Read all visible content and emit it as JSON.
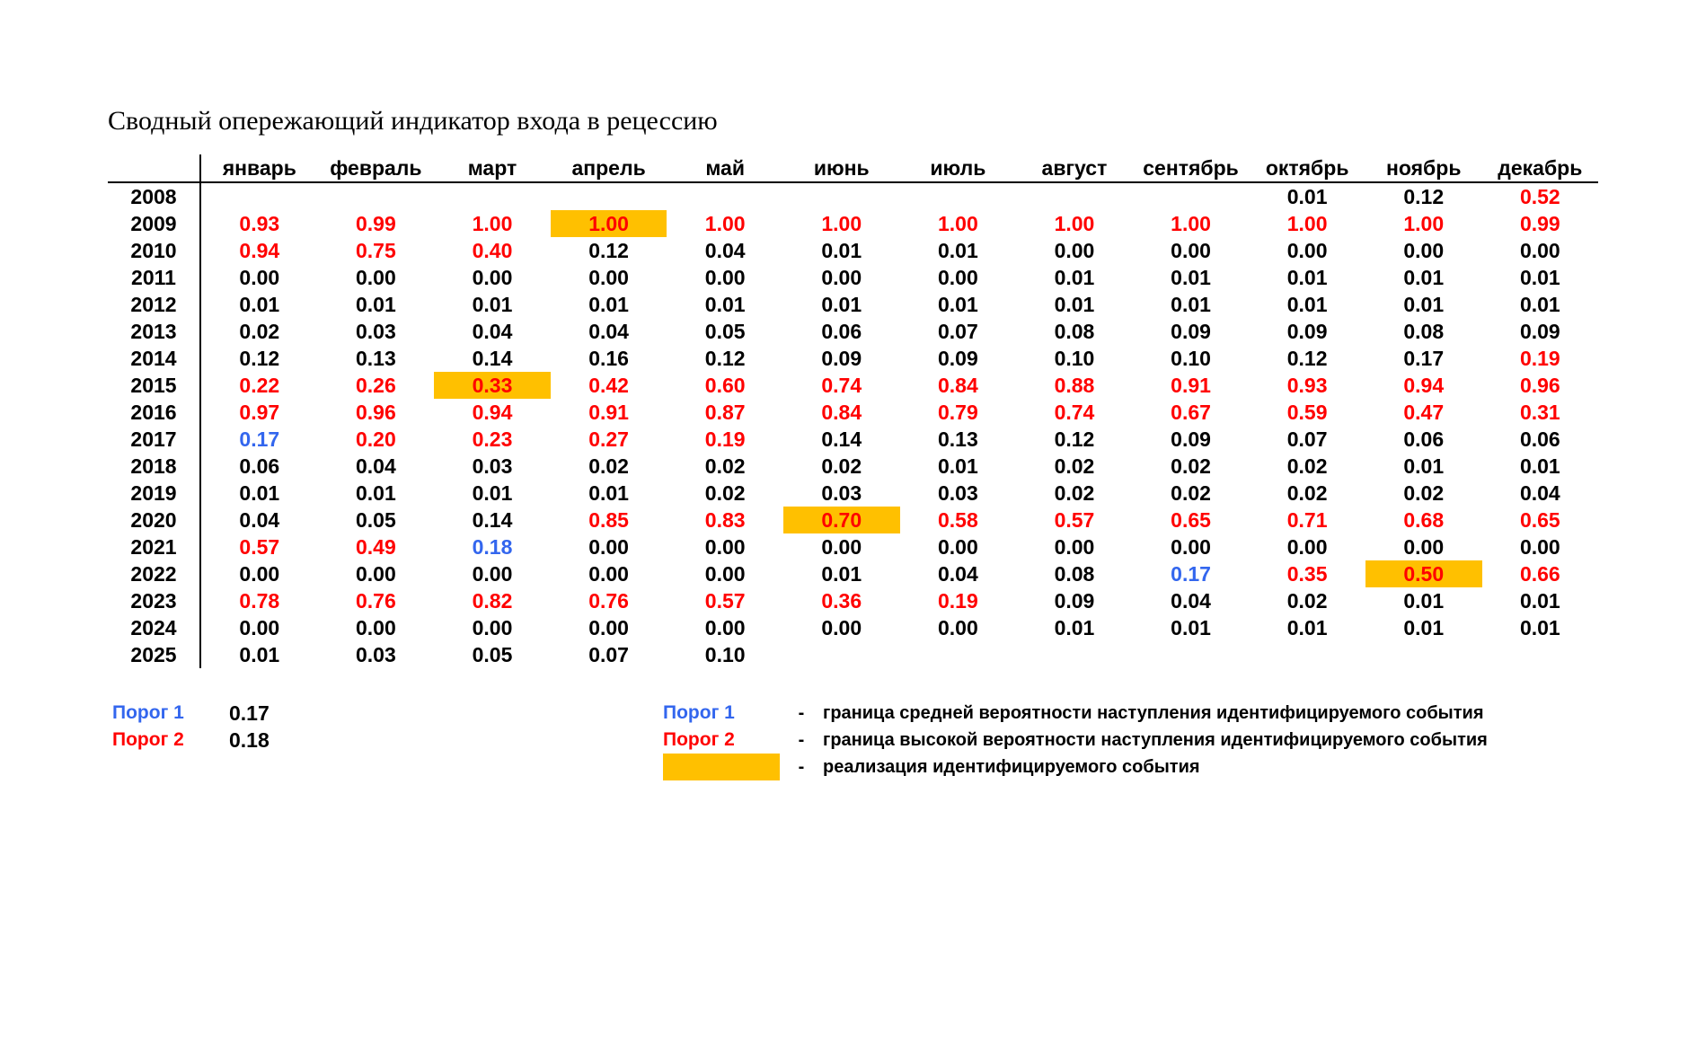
{
  "title": "Сводный опережающий индикатор входа в рецессию",
  "table": {
    "months": [
      "январь",
      "февраль",
      "март",
      "апрель",
      "май",
      "июнь",
      "июль",
      "август",
      "сентябрь",
      "октябрь",
      "ноябрь",
      "декабрь"
    ],
    "rows": [
      {
        "year": "2008",
        "cells": [
          {
            "v": "",
            "c": "black"
          },
          {
            "v": "",
            "c": "black"
          },
          {
            "v": "",
            "c": "black"
          },
          {
            "v": "",
            "c": "black"
          },
          {
            "v": "",
            "c": "black"
          },
          {
            "v": "",
            "c": "black"
          },
          {
            "v": "",
            "c": "black"
          },
          {
            "v": "",
            "c": "black"
          },
          {
            "v": "",
            "c": "black"
          },
          {
            "v": "0.01",
            "c": "black"
          },
          {
            "v": "0.12",
            "c": "black"
          },
          {
            "v": "0.52",
            "c": "red"
          }
        ]
      },
      {
        "year": "2009",
        "cells": [
          {
            "v": "0.93",
            "c": "red"
          },
          {
            "v": "0.99",
            "c": "red"
          },
          {
            "v": "1.00",
            "c": "red"
          },
          {
            "v": "1.00",
            "c": "red",
            "hl": true
          },
          {
            "v": "1.00",
            "c": "red"
          },
          {
            "v": "1.00",
            "c": "red"
          },
          {
            "v": "1.00",
            "c": "red"
          },
          {
            "v": "1.00",
            "c": "red"
          },
          {
            "v": "1.00",
            "c": "red"
          },
          {
            "v": "1.00",
            "c": "red"
          },
          {
            "v": "1.00",
            "c": "red"
          },
          {
            "v": "0.99",
            "c": "red"
          }
        ]
      },
      {
        "year": "2010",
        "cells": [
          {
            "v": "0.94",
            "c": "red"
          },
          {
            "v": "0.75",
            "c": "red"
          },
          {
            "v": "0.40",
            "c": "red"
          },
          {
            "v": "0.12",
            "c": "black"
          },
          {
            "v": "0.04",
            "c": "black"
          },
          {
            "v": "0.01",
            "c": "black"
          },
          {
            "v": "0.01",
            "c": "black"
          },
          {
            "v": "0.00",
            "c": "black"
          },
          {
            "v": "0.00",
            "c": "black"
          },
          {
            "v": "0.00",
            "c": "black"
          },
          {
            "v": "0.00",
            "c": "black"
          },
          {
            "v": "0.00",
            "c": "black"
          }
        ]
      },
      {
        "year": "2011",
        "cells": [
          {
            "v": "0.00",
            "c": "black"
          },
          {
            "v": "0.00",
            "c": "black"
          },
          {
            "v": "0.00",
            "c": "black"
          },
          {
            "v": "0.00",
            "c": "black"
          },
          {
            "v": "0.00",
            "c": "black"
          },
          {
            "v": "0.00",
            "c": "black"
          },
          {
            "v": "0.00",
            "c": "black"
          },
          {
            "v": "0.01",
            "c": "black"
          },
          {
            "v": "0.01",
            "c": "black"
          },
          {
            "v": "0.01",
            "c": "black"
          },
          {
            "v": "0.01",
            "c": "black"
          },
          {
            "v": "0.01",
            "c": "black"
          }
        ]
      },
      {
        "year": "2012",
        "cells": [
          {
            "v": "0.01",
            "c": "black"
          },
          {
            "v": "0.01",
            "c": "black"
          },
          {
            "v": "0.01",
            "c": "black"
          },
          {
            "v": "0.01",
            "c": "black"
          },
          {
            "v": "0.01",
            "c": "black"
          },
          {
            "v": "0.01",
            "c": "black"
          },
          {
            "v": "0.01",
            "c": "black"
          },
          {
            "v": "0.01",
            "c": "black"
          },
          {
            "v": "0.01",
            "c": "black"
          },
          {
            "v": "0.01",
            "c": "black"
          },
          {
            "v": "0.01",
            "c": "black"
          },
          {
            "v": "0.01",
            "c": "black"
          }
        ]
      },
      {
        "year": "2013",
        "cells": [
          {
            "v": "0.02",
            "c": "black"
          },
          {
            "v": "0.03",
            "c": "black"
          },
          {
            "v": "0.04",
            "c": "black"
          },
          {
            "v": "0.04",
            "c": "black"
          },
          {
            "v": "0.05",
            "c": "black"
          },
          {
            "v": "0.06",
            "c": "black"
          },
          {
            "v": "0.07",
            "c": "black"
          },
          {
            "v": "0.08",
            "c": "black"
          },
          {
            "v": "0.09",
            "c": "black"
          },
          {
            "v": "0.09",
            "c": "black"
          },
          {
            "v": "0.08",
            "c": "black"
          },
          {
            "v": "0.09",
            "c": "black"
          }
        ]
      },
      {
        "year": "2014",
        "cells": [
          {
            "v": "0.12",
            "c": "black"
          },
          {
            "v": "0.13",
            "c": "black"
          },
          {
            "v": "0.14",
            "c": "black"
          },
          {
            "v": "0.16",
            "c": "black"
          },
          {
            "v": "0.12",
            "c": "black"
          },
          {
            "v": "0.09",
            "c": "black"
          },
          {
            "v": "0.09",
            "c": "black"
          },
          {
            "v": "0.10",
            "c": "black"
          },
          {
            "v": "0.10",
            "c": "black"
          },
          {
            "v": "0.12",
            "c": "black"
          },
          {
            "v": "0.17",
            "c": "black"
          },
          {
            "v": "0.19",
            "c": "red"
          }
        ]
      },
      {
        "year": "2015",
        "cells": [
          {
            "v": "0.22",
            "c": "red"
          },
          {
            "v": "0.26",
            "c": "red"
          },
          {
            "v": "0.33",
            "c": "red",
            "hl": true
          },
          {
            "v": "0.42",
            "c": "red"
          },
          {
            "v": "0.60",
            "c": "red"
          },
          {
            "v": "0.74",
            "c": "red"
          },
          {
            "v": "0.84",
            "c": "red"
          },
          {
            "v": "0.88",
            "c": "red"
          },
          {
            "v": "0.91",
            "c": "red"
          },
          {
            "v": "0.93",
            "c": "red"
          },
          {
            "v": "0.94",
            "c": "red"
          },
          {
            "v": "0.96",
            "c": "red"
          }
        ]
      },
      {
        "year": "2016",
        "cells": [
          {
            "v": "0.97",
            "c": "red"
          },
          {
            "v": "0.96",
            "c": "red"
          },
          {
            "v": "0.94",
            "c": "red"
          },
          {
            "v": "0.91",
            "c": "red"
          },
          {
            "v": "0.87",
            "c": "red"
          },
          {
            "v": "0.84",
            "c": "red"
          },
          {
            "v": "0.79",
            "c": "red"
          },
          {
            "v": "0.74",
            "c": "red"
          },
          {
            "v": "0.67",
            "c": "red"
          },
          {
            "v": "0.59",
            "c": "red"
          },
          {
            "v": "0.47",
            "c": "red"
          },
          {
            "v": "0.31",
            "c": "red"
          }
        ]
      },
      {
        "year": "2017",
        "cells": [
          {
            "v": "0.17",
            "c": "blue"
          },
          {
            "v": "0.20",
            "c": "red"
          },
          {
            "v": "0.23",
            "c": "red"
          },
          {
            "v": "0.27",
            "c": "red"
          },
          {
            "v": "0.19",
            "c": "red"
          },
          {
            "v": "0.14",
            "c": "black"
          },
          {
            "v": "0.13",
            "c": "black"
          },
          {
            "v": "0.12",
            "c": "black"
          },
          {
            "v": "0.09",
            "c": "black"
          },
          {
            "v": "0.07",
            "c": "black"
          },
          {
            "v": "0.06",
            "c": "black"
          },
          {
            "v": "0.06",
            "c": "black"
          }
        ]
      },
      {
        "year": "2018",
        "cells": [
          {
            "v": "0.06",
            "c": "black"
          },
          {
            "v": "0.04",
            "c": "black"
          },
          {
            "v": "0.03",
            "c": "black"
          },
          {
            "v": "0.02",
            "c": "black"
          },
          {
            "v": "0.02",
            "c": "black"
          },
          {
            "v": "0.02",
            "c": "black"
          },
          {
            "v": "0.01",
            "c": "black"
          },
          {
            "v": "0.02",
            "c": "black"
          },
          {
            "v": "0.02",
            "c": "black"
          },
          {
            "v": "0.02",
            "c": "black"
          },
          {
            "v": "0.01",
            "c": "black"
          },
          {
            "v": "0.01",
            "c": "black"
          }
        ]
      },
      {
        "year": "2019",
        "cells": [
          {
            "v": "0.01",
            "c": "black"
          },
          {
            "v": "0.01",
            "c": "black"
          },
          {
            "v": "0.01",
            "c": "black"
          },
          {
            "v": "0.01",
            "c": "black"
          },
          {
            "v": "0.02",
            "c": "black"
          },
          {
            "v": "0.03",
            "c": "black"
          },
          {
            "v": "0.03",
            "c": "black"
          },
          {
            "v": "0.02",
            "c": "black"
          },
          {
            "v": "0.02",
            "c": "black"
          },
          {
            "v": "0.02",
            "c": "black"
          },
          {
            "v": "0.02",
            "c": "black"
          },
          {
            "v": "0.04",
            "c": "black"
          }
        ]
      },
      {
        "year": "2020",
        "cells": [
          {
            "v": "0.04",
            "c": "black"
          },
          {
            "v": "0.05",
            "c": "black"
          },
          {
            "v": "0.14",
            "c": "black"
          },
          {
            "v": "0.85",
            "c": "red"
          },
          {
            "v": "0.83",
            "c": "red"
          },
          {
            "v": "0.70",
            "c": "red",
            "hl": true
          },
          {
            "v": "0.58",
            "c": "red"
          },
          {
            "v": "0.57",
            "c": "red"
          },
          {
            "v": "0.65",
            "c": "red"
          },
          {
            "v": "0.71",
            "c": "red"
          },
          {
            "v": "0.68",
            "c": "red"
          },
          {
            "v": "0.65",
            "c": "red"
          }
        ]
      },
      {
        "year": "2021",
        "cells": [
          {
            "v": "0.57",
            "c": "red"
          },
          {
            "v": "0.49",
            "c": "red"
          },
          {
            "v": "0.18",
            "c": "blue"
          },
          {
            "v": "0.00",
            "c": "black"
          },
          {
            "v": "0.00",
            "c": "black"
          },
          {
            "v": "0.00",
            "c": "black"
          },
          {
            "v": "0.00",
            "c": "black"
          },
          {
            "v": "0.00",
            "c": "black"
          },
          {
            "v": "0.00",
            "c": "black"
          },
          {
            "v": "0.00",
            "c": "black"
          },
          {
            "v": "0.00",
            "c": "black"
          },
          {
            "v": "0.00",
            "c": "black"
          }
        ]
      },
      {
        "year": "2022",
        "cells": [
          {
            "v": "0.00",
            "c": "black"
          },
          {
            "v": "0.00",
            "c": "black"
          },
          {
            "v": "0.00",
            "c": "black"
          },
          {
            "v": "0.00",
            "c": "black"
          },
          {
            "v": "0.00",
            "c": "black"
          },
          {
            "v": "0.01",
            "c": "black"
          },
          {
            "v": "0.04",
            "c": "black"
          },
          {
            "v": "0.08",
            "c": "black"
          },
          {
            "v": "0.17",
            "c": "blue"
          },
          {
            "v": "0.35",
            "c": "red"
          },
          {
            "v": "0.50",
            "c": "red",
            "hl": true
          },
          {
            "v": "0.66",
            "c": "red"
          }
        ]
      },
      {
        "year": "2023",
        "cells": [
          {
            "v": "0.78",
            "c": "red"
          },
          {
            "v": "0.76",
            "c": "red"
          },
          {
            "v": "0.82",
            "c": "red"
          },
          {
            "v": "0.76",
            "c": "red"
          },
          {
            "v": "0.57",
            "c": "red"
          },
          {
            "v": "0.36",
            "c": "red"
          },
          {
            "v": "0.19",
            "c": "red"
          },
          {
            "v": "0.09",
            "c": "black"
          },
          {
            "v": "0.04",
            "c": "black"
          },
          {
            "v": "0.02",
            "c": "black"
          },
          {
            "v": "0.01",
            "c": "black"
          },
          {
            "v": "0.01",
            "c": "black"
          }
        ]
      },
      {
        "year": "2024",
        "cells": [
          {
            "v": "0.00",
            "c": "black"
          },
          {
            "v": "0.00",
            "c": "black"
          },
          {
            "v": "0.00",
            "c": "black"
          },
          {
            "v": "0.00",
            "c": "black"
          },
          {
            "v": "0.00",
            "c": "black"
          },
          {
            "v": "0.00",
            "c": "black"
          },
          {
            "v": "0.00",
            "c": "black"
          },
          {
            "v": "0.01",
            "c": "black"
          },
          {
            "v": "0.01",
            "c": "black"
          },
          {
            "v": "0.01",
            "c": "black"
          },
          {
            "v": "0.01",
            "c": "black"
          },
          {
            "v": "0.01",
            "c": "black"
          }
        ]
      },
      {
        "year": "2025",
        "cells": [
          {
            "v": "0.01",
            "c": "black"
          },
          {
            "v": "0.03",
            "c": "black"
          },
          {
            "v": "0.05",
            "c": "black"
          },
          {
            "v": "0.07",
            "c": "black"
          },
          {
            "v": "0.10",
            "c": "black"
          },
          {
            "v": "",
            "c": "black"
          },
          {
            "v": "",
            "c": "black"
          },
          {
            "v": "",
            "c": "black"
          },
          {
            "v": "",
            "c": "black"
          },
          {
            "v": "",
            "c": "black"
          },
          {
            "v": "",
            "c": "black"
          },
          {
            "v": "",
            "c": "black"
          }
        ]
      }
    ]
  },
  "thresholds": [
    {
      "name": "Порог 1",
      "value": "0.17",
      "color": "#3366ee"
    },
    {
      "name": "Порог 2",
      "value": "0.18",
      "color": "#ff0000"
    }
  ],
  "legend": {
    "items": [
      {
        "key": "Порог 1",
        "key_color": "#3366ee",
        "dash": "-",
        "text": "граница средней вероятности наступления идентифицируемого события"
      },
      {
        "key": "Порог 2",
        "key_color": "#ff0000",
        "dash": "-",
        "text": "граница высокой вероятности наступления идентифицируемого события"
      },
      {
        "swatch_color": "#ffc000",
        "dash": "-",
        "text": "реализация идентифицируемого события"
      }
    ]
  },
  "colors": {
    "red": "#ff0000",
    "blue": "#3366ee",
    "black": "#000000",
    "highlight": "#ffc000"
  }
}
